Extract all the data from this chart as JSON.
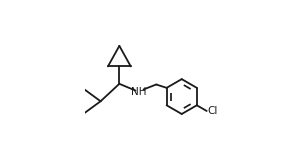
{
  "background_color": "#ffffff",
  "line_color": "#1a1a1a",
  "line_width": 1.3,
  "text_color": "#1a1a1a",
  "nh_label": "NH",
  "cl_label": "Cl",
  "figsize": [
    2.97,
    1.62
  ],
  "dpi": 100,
  "xlim": [
    0.0,
    1.0
  ],
  "ylim": [
    0.05,
    0.98
  ]
}
